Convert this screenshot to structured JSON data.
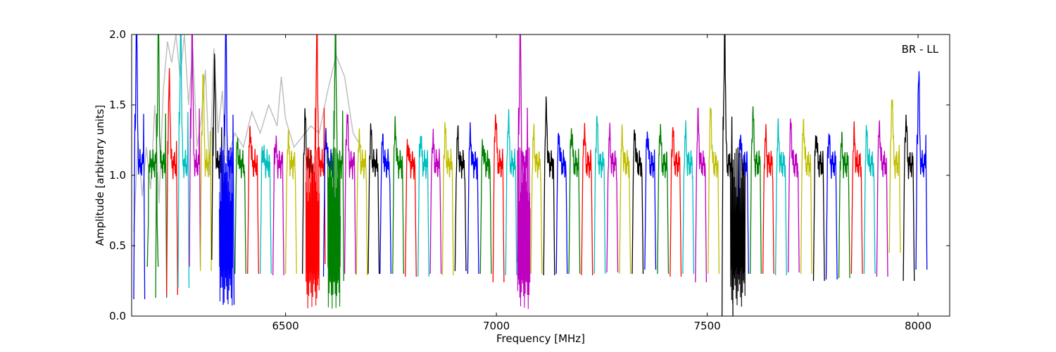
{
  "chart_data": {
    "type": "line",
    "title": "",
    "annotation": "BR - LL",
    "xlabel": "Frequency [MHz]",
    "ylabel": "Amplitude [arbitrary units]",
    "xlim": [
      6135,
      8075
    ],
    "ylim": [
      0.0,
      2.0
    ],
    "x_ticks": [
      6500,
      7000,
      7500,
      8000
    ],
    "x_tick_labels": [
      "6500",
      "7000",
      "7500",
      "8000"
    ],
    "y_ticks": [
      0.0,
      0.5,
      1.0,
      1.5,
      2.0
    ],
    "y_tick_labels": [
      "0.0",
      "0.5",
      "1.0",
      "1.5",
      "2.0"
    ],
    "grid": false,
    "legend": "none",
    "background_series": {
      "color": "#bfbfbf",
      "points": [
        [
          6140,
          0.6
        ],
        [
          6150,
          1.25
        ],
        [
          6160,
          0.85
        ],
        [
          6170,
          1.2
        ],
        [
          6180,
          0.9
        ],
        [
          6190,
          1.5
        ],
        [
          6200,
          0.8
        ],
        [
          6210,
          1.6
        ],
        [
          6220,
          1.95
        ],
        [
          6230,
          1.8
        ],
        [
          6240,
          2.0
        ],
        [
          6250,
          1.7
        ],
        [
          6260,
          2.0
        ],
        [
          6270,
          1.5
        ],
        [
          6280,
          1.9
        ],
        [
          6290,
          1.2
        ],
        [
          6300,
          1.4
        ],
        [
          6310,
          1.75
        ],
        [
          6320,
          1.0
        ],
        [
          6330,
          1.9
        ],
        [
          6340,
          1.3
        ],
        [
          6350,
          1.6
        ],
        [
          6360,
          1.1
        ],
        [
          6380,
          1.3
        ],
        [
          6400,
          1.2
        ],
        [
          6420,
          1.45
        ],
        [
          6440,
          1.3
        ],
        [
          6460,
          1.5
        ],
        [
          6480,
          1.35
        ],
        [
          6490,
          1.7
        ],
        [
          6500,
          1.4
        ],
        [
          6520,
          1.2
        ],
        [
          6560,
          1.35
        ],
        [
          6580,
          1.3
        ],
        [
          6600,
          1.6
        ],
        [
          6620,
          1.85
        ],
        [
          6640,
          1.7
        ],
        [
          6660,
          1.3
        ],
        [
          6680,
          1.2
        ]
      ]
    },
    "channel_width_mhz": 26,
    "channels": [
      {
        "f": 6140,
        "color": "#0000ff",
        "peak": 2.0,
        "min": 0.12
      },
      {
        "f": 6172,
        "color": "#008000",
        "peak": 0.85,
        "min": 0.35
      },
      {
        "f": 6192,
        "color": "#008000",
        "peak": 2.0,
        "min": 0.13
      },
      {
        "f": 6218,
        "color": "#ff0000",
        "peak": 1.72,
        "min": 0.15
      },
      {
        "f": 6245,
        "color": "#00bfbf",
        "peak": 2.0,
        "min": 0.2
      },
      {
        "f": 6272,
        "color": "#bf00bf",
        "peak": 2.0,
        "min": 0.35
      },
      {
        "f": 6298,
        "color": "#bfbf00",
        "peak": 1.78,
        "min": 0.32
      },
      {
        "f": 6325,
        "color": "#000000",
        "peak": 1.8,
        "min": 0.4
      },
      {
        "f": 6352,
        "color": "#0000ff",
        "peak": 2.0,
        "min": 0.08
      },
      {
        "f": 6380,
        "color": "#008000",
        "peak": 1.22,
        "min": 0.3
      },
      {
        "f": 6410,
        "color": "#ff0000",
        "peak": 1.34,
        "min": 0.3
      },
      {
        "f": 6440,
        "color": "#00bfbf",
        "peak": 1.2,
        "min": 0.3
      },
      {
        "f": 6470,
        "color": "#bf00bf",
        "peak": 1.25,
        "min": 0.29
      },
      {
        "f": 6500,
        "color": "#bfbf00",
        "peak": 1.27,
        "min": 0.3
      },
      {
        "f": 6540,
        "color": "#000000",
        "peak": 1.43,
        "min": 0.3
      },
      {
        "f": 6568,
        "color": "#ff0000",
        "peak": 2.0,
        "min": 0.37
      },
      {
        "f": 6590,
        "color": "#0000ff",
        "peak": 1.3,
        "min": 0.28
      },
      {
        "f": 6612,
        "color": "#008000",
        "peak": 2.0,
        "min": 0.25
      },
      {
        "f": 6640,
        "color": "#bf00bf",
        "peak": 1.47,
        "min": 0.3
      },
      {
        "f": 6668,
        "color": "#bfbf00",
        "peak": 1.28,
        "min": 0.29
      },
      {
        "f": 6696,
        "color": "#000000",
        "peak": 1.32,
        "min": 0.3
      },
      {
        "f": 6724,
        "color": "#0000ff",
        "peak": 1.25,
        "min": 0.3
      },
      {
        "f": 6754,
        "color": "#008000",
        "peak": 1.37,
        "min": 0.3
      },
      {
        "f": 6784,
        "color": "#ff0000",
        "peak": 1.24,
        "min": 0.28
      },
      {
        "f": 6814,
        "color": "#00bfbf",
        "peak": 1.3,
        "min": 0.28
      },
      {
        "f": 6843,
        "color": "#bf00bf",
        "peak": 1.28,
        "min": 0.3
      },
      {
        "f": 6872,
        "color": "#bfbf00",
        "peak": 1.34,
        "min": 0.29
      },
      {
        "f": 6902,
        "color": "#000000",
        "peak": 1.3,
        "min": 0.32
      },
      {
        "f": 6932,
        "color": "#0000ff",
        "peak": 1.31,
        "min": 0.3
      },
      {
        "f": 6962,
        "color": "#008000",
        "peak": 1.23,
        "min": 0.3
      },
      {
        "f": 6992,
        "color": "#ff0000",
        "peak": 1.46,
        "min": 0.24
      },
      {
        "f": 7022,
        "color": "#00bfbf",
        "peak": 1.44,
        "min": 0.29
      },
      {
        "f": 7050,
        "color": "#bf00bf",
        "peak": 2.0,
        "min": 0.38
      },
      {
        "f": 7082,
        "color": "#bfbf00",
        "peak": 1.3,
        "min": 0.3
      },
      {
        "f": 7112,
        "color": "#000000",
        "peak": 1.5,
        "min": 0.29
      },
      {
        "f": 7142,
        "color": "#0000ff",
        "peak": 1.3,
        "min": 0.3
      },
      {
        "f": 7172,
        "color": "#008000",
        "peak": 1.35,
        "min": 0.3
      },
      {
        "f": 7202,
        "color": "#ff0000",
        "peak": 1.35,
        "min": 0.29
      },
      {
        "f": 7232,
        "color": "#00bfbf",
        "peak": 1.41,
        "min": 0.3
      },
      {
        "f": 7262,
        "color": "#bf00bf",
        "peak": 1.3,
        "min": 0.31
      },
      {
        "f": 7292,
        "color": "#bfbf00",
        "peak": 1.29,
        "min": 0.3
      },
      {
        "f": 7322,
        "color": "#000000",
        "peak": 1.31,
        "min": 0.3
      },
      {
        "f": 7352,
        "color": "#0000ff",
        "peak": 1.32,
        "min": 0.33
      },
      {
        "f": 7382,
        "color": "#008000",
        "peak": 1.36,
        "min": 0.3
      },
      {
        "f": 7412,
        "color": "#ff0000",
        "peak": 1.33,
        "min": 0.28
      },
      {
        "f": 7442,
        "color": "#00bfbf",
        "peak": 1.32,
        "min": 0.3
      },
      {
        "f": 7472,
        "color": "#bf00bf",
        "peak": 1.42,
        "min": 0.24
      },
      {
        "f": 7502,
        "color": "#bfbf00",
        "peak": 1.49,
        "min": 0.3
      },
      {
        "f": 7535,
        "color": "#000000",
        "peak": 2.0,
        "min": 0.0
      },
      {
        "f": 7572,
        "color": "#0000ff",
        "peak": 1.3,
        "min": 0.3
      },
      {
        "f": 7602,
        "color": "#008000",
        "peak": 1.48,
        "min": 0.3
      },
      {
        "f": 7632,
        "color": "#ff0000",
        "peak": 1.3,
        "min": 0.3
      },
      {
        "f": 7662,
        "color": "#00bfbf",
        "peak": 1.33,
        "min": 0.29
      },
      {
        "f": 7692,
        "color": "#bf00bf",
        "peak": 1.38,
        "min": 0.31
      },
      {
        "f": 7722,
        "color": "#bfbf00",
        "peak": 1.4,
        "min": 0.3
      },
      {
        "f": 7752,
        "color": "#000000",
        "peak": 1.31,
        "min": 0.25
      },
      {
        "f": 7782,
        "color": "#0000ff",
        "peak": 1.29,
        "min": 0.26
      },
      {
        "f": 7812,
        "color": "#008000",
        "peak": 1.26,
        "min": 0.27
      },
      {
        "f": 7842,
        "color": "#ff0000",
        "peak": 1.3,
        "min": 0.3
      },
      {
        "f": 7872,
        "color": "#00bfbf",
        "peak": 1.32,
        "min": 0.3
      },
      {
        "f": 7902,
        "color": "#bf00bf",
        "peak": 1.37,
        "min": 0.28
      },
      {
        "f": 7932,
        "color": "#bfbf00",
        "peak": 1.61,
        "min": 0.45
      },
      {
        "f": 7965,
        "color": "#000000",
        "peak": 1.43,
        "min": 0.25
      },
      {
        "f": 7995,
        "color": "#0000ff",
        "peak": 1.74,
        "min": 0.33
      }
    ],
    "rfi_bursts": [
      {
        "f": 6568,
        "color": "#ff0000",
        "from": 6548,
        "to": 6580
      },
      {
        "f": 6612,
        "color": "#008000",
        "from": 6600,
        "to": 6630
      },
      {
        "f": 7055,
        "color": "#bf00bf",
        "from": 7050,
        "to": 7080
      },
      {
        "f": 7562,
        "color": "#000000",
        "from": 7555,
        "to": 7590
      },
      {
        "f": 6352,
        "color": "#0000ff",
        "from": 6343,
        "to": 6375
      }
    ]
  }
}
